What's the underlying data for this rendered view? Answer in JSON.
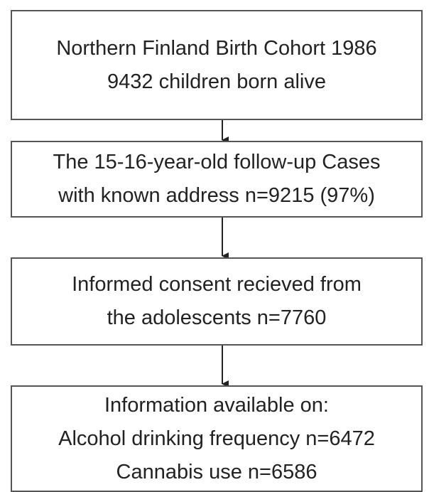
{
  "nodes": [
    {
      "lines": [
        "Northern Finland Birth Cohort 1986",
        "9432 children born alive"
      ]
    },
    {
      "lines": [
        "The 15-16-year-old follow-up Cases",
        "with known address n=9215 (97%)"
      ]
    },
    {
      "lines": [
        "Informed consent recieved from",
        "the  adolescents n=7760"
      ]
    },
    {
      "lines": [
        "Information available on:",
        "Alcohol drinking frequency n=6472",
        "Cannabis use n=6586"
      ]
    }
  ]
}
